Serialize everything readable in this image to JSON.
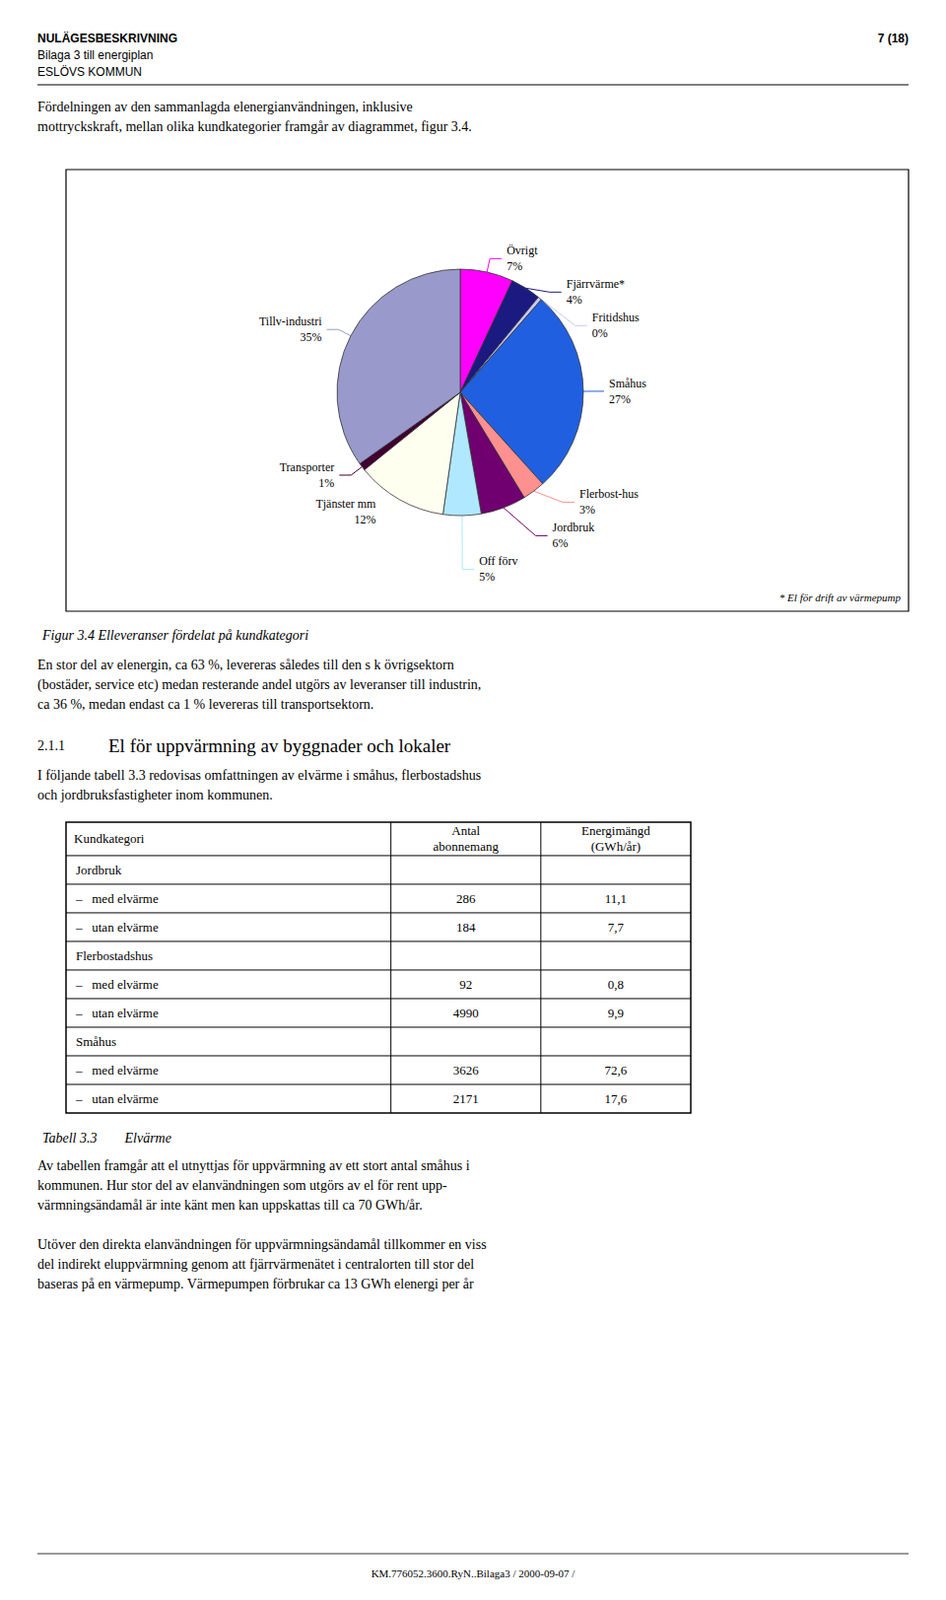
{
  "chart_data": [
    {
      "type": "pie",
      "title": "Figur 3.4 Elleveranser fördelat på kundkategori",
      "categories": [
        "Övrigt",
        "Fjärrvärme*",
        "Fritidshus",
        "Småhus",
        "Flerbost-hus",
        "Jordbruk",
        "Off förv",
        "Tjänster mm",
        "Transporter",
        "Tillv-industri"
      ],
      "values": [
        7,
        4,
        0.5,
        27,
        3,
        6,
        5,
        12,
        1,
        35
      ],
      "value_labels": [
        "7%",
        "4%",
        "0%",
        "27%",
        "3%",
        "6%",
        "5%",
        "12%",
        "1%",
        "35%"
      ],
      "colors": [
        "#FF00FF",
        "#1a1a80",
        "#c8c8ff",
        "#2060e0",
        "#ff9090",
        "#700070",
        "#b0e8ff",
        "#fffff0",
        "#400030",
        "#9999cc"
      ],
      "data_labels": true,
      "annotations": [
        "* El för drift av värmepump"
      ]
    },
    {
      "type": "table",
      "title": "Tabell 3.3  Elvärme",
      "xlabel": "Kundkategori",
      "categories": [
        "Jordbruk",
        "–   med elvärme",
        "–   utan elvärme",
        "Flerbostadshus",
        "–   med elvärme",
        "–   utan elvärme",
        "Småhus",
        "–   med elvärme",
        "–   utan elvärme"
      ],
      "series": [
        {
          "name": "Antal\nabonnemang",
          "values": [
            null,
            286,
            184,
            null,
            92,
            4990,
            null,
            3626,
            2171
          ]
        },
        {
          "name": "Energimängd\n(GWh/år)",
          "values": [
            null,
            11.1,
            7.7,
            null,
            0.8,
            9.9,
            null,
            72.6,
            17.6
          ],
          "value_labels": [
            null,
            "11,1",
            "7,7",
            null,
            "0,8",
            "9,9",
            null,
            "72,6",
            "17,6"
          ]
        }
      ]
    }
  ],
  "page": {
    "header_left": [
      "NULÄGESBESKRIVNING",
      "Bilaga 3 till energiplan",
      "ESLÖVS KOMMUN"
    ],
    "header_right": "7 (18)",
    "intro": "Fördelningen av den sammanlagda elenergianvändningen, inklusive\nmottryckskraft, mellan olika kundkategorier framgår av diagrammet, figur 3.4.",
    "body_text": "En stor del av elenergin, ca 63 %, levereras således till den s k övrigsektorn\n(bostäder, service etc) medan resterande andel utgörs av leveranser till industrin,\nca 36 %, medan endast ca 1 % levereras till transportsektorn.",
    "section_number": "2.1.1",
    "section_title": "El för uppvärmning av byggnader och lokaler",
    "section_body": "I följande tabell 3.3 redovisas omfattningen av elvärme i småhus, flerbostadshus\noch jordbruksfastigheter inom kommunen.",
    "table_footer": "Av tabellen framgår att el utnyttjas för uppvärmning av ett stort antal småhus i\nkommunen. Hur stor del av elanvändningen som utgörs av el för rent upp-\nvärmningsändamål är inte känt men kan uppskattas till ca 70 GWh/år.",
    "footer_body": "Utöver den direkta elanvändningen för uppvärmningsändamål tillkommer en viss\ndel indirekt eluppvärmning genom att fjärrvärmenätet i centralorten till stor del\nbaseras på en värmepump. Värmepumpen förbrukar ca 13 GWh elenergi per år",
    "footer_note": "KM.776052.3600.RyN..Bilaga3 / 2000-09-07 /"
  }
}
